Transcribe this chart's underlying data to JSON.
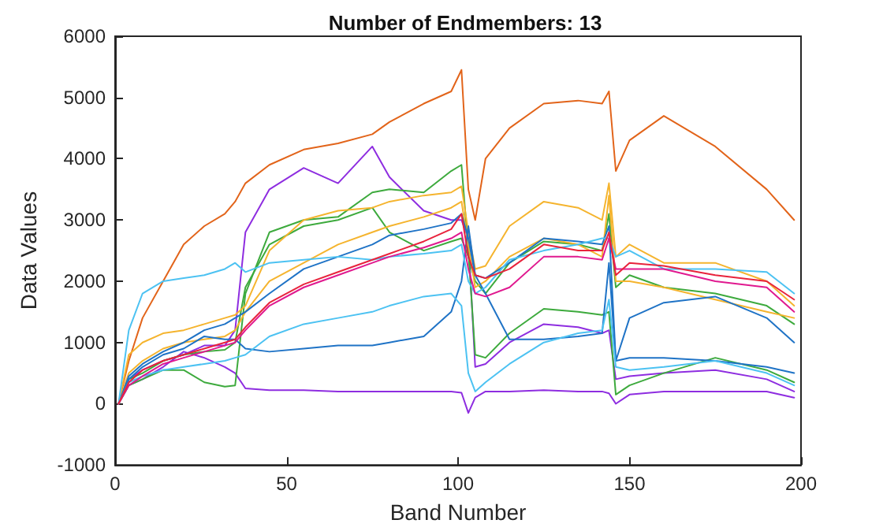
{
  "chart_data": {
    "type": "line",
    "title": "Number of Endmembers: 13",
    "xlabel": "Band Number",
    "ylabel": "Data Values",
    "x": [
      1,
      4,
      8,
      14,
      20,
      26,
      32,
      35,
      38,
      45,
      55,
      65,
      75,
      80,
      90,
      98,
      101,
      103,
      105,
      108,
      115,
      125,
      135,
      142,
      144,
      146,
      150,
      160,
      175,
      190,
      198
    ],
    "series": [
      {
        "color": "#e2641a",
        "values": [
          0,
          700,
          1400,
          2000,
          2600,
          2900,
          3100,
          3300,
          3600,
          3900,
          4150,
          4250,
          4400,
          4600,
          4900,
          5100,
          5450,
          3500,
          3000,
          4000,
          4500,
          4900,
          4950,
          4900,
          5100,
          3800,
          4300,
          4700,
          4200,
          3500,
          3000
        ]
      },
      {
        "color": "#8e2de0",
        "values": [
          0,
          400,
          550,
          700,
          800,
          950,
          950,
          1200,
          2800,
          3500,
          3850,
          3600,
          4200,
          3700,
          3150,
          3000,
          3000,
          2700,
          600,
          650,
          1000,
          1300,
          1250,
          1150,
          1200,
          400,
          450,
          500,
          550,
          400,
          200
        ]
      },
      {
        "color": "#8e2de0",
        "values": [
          0,
          300,
          400,
          600,
          850,
          750,
          600,
          500,
          250,
          220,
          220,
          200,
          200,
          200,
          200,
          200,
          180,
          -150,
          100,
          200,
          200,
          220,
          200,
          200,
          170,
          0,
          150,
          200,
          200,
          200,
          100
        ]
      },
      {
        "color": "#3daa3d",
        "values": [
          0,
          300,
          400,
          550,
          550,
          350,
          280,
          300,
          1800,
          2800,
          3000,
          3050,
          3450,
          3500,
          3450,
          3800,
          3900,
          2500,
          800,
          750,
          1150,
          1550,
          1500,
          1450,
          1500,
          150,
          300,
          500,
          750,
          550,
          350
        ]
      },
      {
        "color": "#3daa3d",
        "values": [
          0,
          400,
          500,
          700,
          800,
          850,
          880,
          1000,
          1900,
          2600,
          2900,
          3000,
          3200,
          2800,
          2500,
          2650,
          2700,
          2400,
          2000,
          1800,
          2300,
          2650,
          2600,
          2500,
          3100,
          1900,
          2100,
          1900,
          1800,
          1600,
          1300
        ]
      },
      {
        "color": "#f5b42e",
        "values": [
          0,
          800,
          1000,
          1150,
          1200,
          1300,
          1400,
          1450,
          1600,
          2500,
          3000,
          3150,
          3200,
          3300,
          3400,
          3450,
          3550,
          2800,
          2200,
          2250,
          2900,
          3300,
          3200,
          3000,
          3600,
          2400,
          2600,
          2300,
          2300,
          2000,
          1600
        ]
      },
      {
        "color": "#f5b42e",
        "values": [
          0,
          500,
          700,
          900,
          1000,
          1050,
          1100,
          1200,
          1500,
          2000,
          2300,
          2600,
          2800,
          2900,
          3050,
          3200,
          3300,
          2600,
          1900,
          2000,
          2400,
          2700,
          2600,
          2400,
          3400,
          2000,
          2000,
          1900,
          1700,
          1500,
          1400
        ]
      },
      {
        "color": "#1f73c6",
        "values": [
          0,
          400,
          600,
          800,
          900,
          1100,
          1050,
          1050,
          900,
          850,
          900,
          950,
          950,
          1000,
          1100,
          1500,
          2000,
          2900,
          2100,
          1800,
          1050,
          1050,
          1100,
          1150,
          2300,
          700,
          1400,
          1650,
          1750,
          1400,
          1000
        ]
      },
      {
        "color": "#1f73c6",
        "values": [
          0,
          450,
          650,
          850,
          1000,
          1200,
          1300,
          1400,
          1500,
          1800,
          2200,
          2400,
          2600,
          2750,
          2850,
          2950,
          3100,
          2700,
          2100,
          2050,
          2300,
          2700,
          2650,
          2600,
          2900,
          700,
          750,
          750,
          700,
          600,
          500
        ]
      },
      {
        "color": "#4cc2f2",
        "values": [
          0,
          1200,
          1800,
          2000,
          2050,
          2100,
          2200,
          2300,
          2150,
          2300,
          2350,
          2400,
          2350,
          2400,
          2450,
          2500,
          2600,
          2000,
          1800,
          1900,
          2350,
          2500,
          2600,
          2700,
          2700,
          2400,
          2500,
          2200,
          2200,
          2150,
          1800
        ]
      },
      {
        "color": "#4cc2f2",
        "values": [
          0,
          350,
          450,
          550,
          600,
          650,
          700,
          750,
          800,
          1100,
          1300,
          1400,
          1500,
          1600,
          1750,
          1800,
          1600,
          500,
          200,
          350,
          650,
          1000,
          1150,
          1200,
          1700,
          600,
          550,
          600,
          700,
          500,
          300
        ]
      },
      {
        "color": "#e0198f",
        "values": [
          0,
          300,
          450,
          650,
          750,
          850,
          950,
          1000,
          1200,
          1600,
          1900,
          2100,
          2300,
          2400,
          2550,
          2700,
          2800,
          2200,
          1800,
          1750,
          1900,
          2400,
          2400,
          2350,
          2700,
          2200,
          2200,
          2200,
          2000,
          1900,
          1500
        ]
      },
      {
        "color": "#e8233c",
        "values": [
          0,
          350,
          550,
          700,
          800,
          900,
          1000,
          1050,
          1250,
          1650,
          1950,
          2150,
          2350,
          2450,
          2650,
          2850,
          3100,
          2400,
          2100,
          2050,
          2200,
          2600,
          2500,
          2500,
          2800,
          2100,
          2300,
          2250,
          2100,
          2000,
          1700
        ]
      }
    ],
    "xlim": [
      0,
      200
    ],
    "xticks": [
      0,
      50,
      100,
      150,
      200
    ],
    "ylim": [
      -1000,
      6000
    ],
    "yticks": [
      -1000,
      0,
      1000,
      2000,
      3000,
      4000,
      5000,
      6000
    ],
    "grid": false,
    "marker": "none",
    "line_style": "solid"
  }
}
